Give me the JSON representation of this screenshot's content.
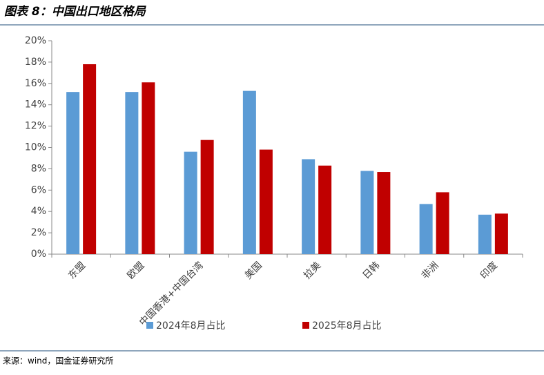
{
  "chart_data": {
    "type": "bar",
    "title": "图表 8：中国出口地区格局",
    "categories": [
      "东盟",
      "欧盟",
      "中国香港+中国台湾",
      "美国",
      "拉美",
      "日韩",
      "非洲",
      "印度"
    ],
    "series": [
      {
        "name": "2024年8月占比",
        "color": "#5b9bd5",
        "values": [
          15.2,
          15.2,
          9.6,
          15.3,
          8.9,
          7.8,
          4.7,
          3.7
        ]
      },
      {
        "name": "2025年8月占比",
        "color": "#c00000",
        "values": [
          17.8,
          16.1,
          10.7,
          9.8,
          8.3,
          7.7,
          5.8,
          3.8
        ]
      }
    ],
    "ylim": [
      0,
      20
    ],
    "yticks": [
      {
        "value": 0,
        "label": "0%"
      },
      {
        "value": 2,
        "label": "2%"
      },
      {
        "value": 4,
        "label": "4%"
      },
      {
        "value": 6,
        "label": "6%"
      },
      {
        "value": 8,
        "label": "8%"
      },
      {
        "value": 10,
        "label": "10%"
      },
      {
        "value": 12,
        "label": "12%"
      },
      {
        "value": 14,
        "label": "14%"
      },
      {
        "value": 16,
        "label": "16%"
      },
      {
        "value": 18,
        "label": "18%"
      },
      {
        "value": 20,
        "label": "20%"
      }
    ],
    "grid": false,
    "source": "来源：wind，国金证券研究所"
  }
}
